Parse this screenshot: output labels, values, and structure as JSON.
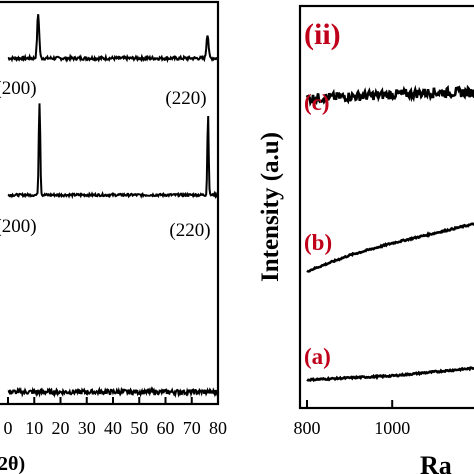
{
  "colors": {
    "ink": "#000000",
    "label_red": "#c0001a",
    "background": "#ffffff"
  },
  "chart_data": [
    {
      "type": "line",
      "title": "",
      "xlabel": "2θ)",
      "ylabel": "",
      "xlim": [
        0,
        80
      ],
      "x_ticks": [
        0,
        10,
        20,
        30,
        40,
        50,
        60,
        70,
        80
      ],
      "x_tick_labels": [
        "0",
        "10",
        "20",
        "30",
        "40",
        "50",
        "60",
        "70",
        "80"
      ],
      "grid": false,
      "annotations": [
        {
          "text": "(200)",
          "x": 9,
          "series": 0
        },
        {
          "text": "(220)",
          "x": 75,
          "series": 0
        },
        {
          "text": "(200)",
          "x": 9,
          "series": 1
        },
        {
          "text": "(220)",
          "x": 75,
          "series": 1
        }
      ],
      "series": [
        {
          "baseline": 0.86,
          "noise": 0.004,
          "peaks": [
            {
              "x": 11.5,
              "height": 0.11,
              "width": 0.55
            },
            {
              "x": 76.0,
              "height": 0.06,
              "width": 0.55
            }
          ]
        },
        {
          "baseline": 0.52,
          "noise": 0.003,
          "peaks": [
            {
              "x": 12.0,
              "height": 0.23,
              "width": 0.4
            },
            {
              "x": 76.2,
              "height": 0.2,
              "width": 0.35
            }
          ]
        },
        {
          "baseline": 0.03,
          "noise": 0.006,
          "peaks": []
        }
      ]
    },
    {
      "type": "line",
      "title": "",
      "panel_label": "(ii)",
      "xlabel": "Ra",
      "ylabel": "Intensity (a.u)",
      "xlim": [
        800,
        1300
      ],
      "x_ticks": [
        800,
        1000
      ],
      "x_tick_labels": [
        "800",
        "1000"
      ],
      "y_ticks": [],
      "grid": false,
      "series": [
        {
          "name": "(c)",
          "x": [
            800,
            900,
            1000,
            1100,
            1200,
            1300
          ],
          "y": [
            0.77,
            0.775,
            0.78,
            0.785,
            0.785,
            0.79
          ],
          "noise": 0.012
        },
        {
          "name": "(b)",
          "x": [
            800,
            900,
            1000,
            1100,
            1200,
            1300
          ],
          "y": [
            0.34,
            0.38,
            0.41,
            0.435,
            0.46,
            0.48
          ],
          "noise": 0.002
        },
        {
          "name": "(a)",
          "x": [
            800,
            900,
            1000,
            1100,
            1200,
            1300
          ],
          "y": [
            0.07,
            0.075,
            0.08,
            0.09,
            0.1,
            0.11
          ],
          "noise": 0.002
        }
      ]
    }
  ]
}
